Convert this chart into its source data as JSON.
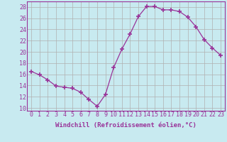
{
  "x": [
    0,
    1,
    2,
    3,
    4,
    5,
    6,
    7,
    8,
    9,
    10,
    11,
    12,
    13,
    14,
    15,
    16,
    17,
    18,
    19,
    20,
    21,
    22,
    23
  ],
  "y": [
    16.5,
    15.9,
    15.0,
    13.9,
    13.7,
    13.5,
    12.8,
    11.5,
    10.3,
    12.4,
    17.2,
    20.5,
    23.2,
    26.3,
    28.1,
    28.1,
    27.5,
    27.5,
    27.2,
    26.2,
    24.5,
    22.2,
    20.7,
    19.4
  ],
  "line_color": "#993399",
  "marker": "+",
  "marker_size": 4,
  "bg_color": "#c8eaf0",
  "grid_color": "#b0b0b0",
  "xlabel": "Windchill (Refroidissement éolien,°C)",
  "ylabel": "",
  "title": "",
  "xlim": [
    -0.5,
    23.5
  ],
  "ylim": [
    9.5,
    29.0
  ],
  "xticks": [
    0,
    1,
    2,
    3,
    4,
    5,
    6,
    7,
    8,
    9,
    10,
    11,
    12,
    13,
    14,
    15,
    16,
    17,
    18,
    19,
    20,
    21,
    22,
    23
  ],
  "yticks": [
    10,
    12,
    14,
    16,
    18,
    20,
    22,
    24,
    26,
    28
  ],
  "xlabel_fontsize": 6.5,
  "tick_fontsize": 6.0
}
